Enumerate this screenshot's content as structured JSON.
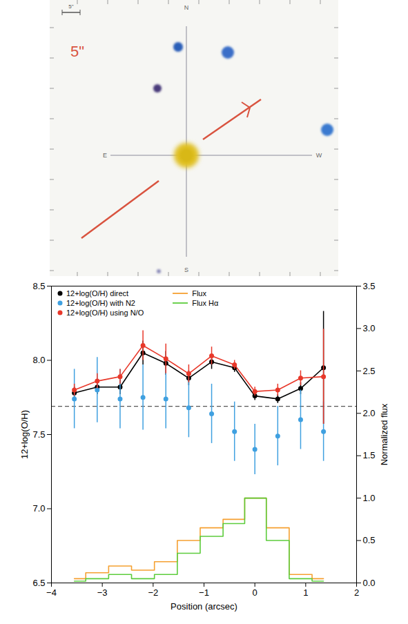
{
  "finding_chart": {
    "compass_labels": {
      "north": "N",
      "south": "S",
      "east": "E",
      "west": "W"
    },
    "scale_bar_label": "5\"",
    "scale_label": "5\"",
    "slit_color": "#d9533f",
    "scale_label_color": "#d9533f"
  },
  "chart_data": {
    "type": "scatter",
    "x_label": "Position (arcsec)",
    "y_label": "12+log(O/H)",
    "y2_label": "Normalized flux",
    "xlim": [
      -4,
      2
    ],
    "xticks": [
      -4,
      -3,
      -2,
      -1,
      0,
      1,
      2
    ],
    "ylim": [
      6.5,
      8.5
    ],
    "yticks": [
      6.5,
      {
        "value": 7,
        "label": "7.0"
      },
      7.5,
      {
        "value": 8,
        "label": "8.0"
      },
      8.5
    ],
    "y2lim": [
      0,
      3.5
    ],
    "y2ticks": [
      {
        "value": 0,
        "label": "0.0"
      },
      0.5,
      {
        "value": 1,
        "label": "1.0"
      },
      1.5,
      {
        "value": 2,
        "label": "2.0"
      },
      2.5,
      {
        "value": 3,
        "label": "3.0"
      },
      3.5
    ],
    "legend": "top",
    "x": [
      -3.55,
      -3.1,
      -2.65,
      -2.2,
      -1.75,
      -1.3,
      -0.85,
      -0.4,
      0.0,
      0.45,
      0.9,
      1.35
    ],
    "series": [
      {
        "name": "12+log(O/H) direct",
        "color": "#000000",
        "type": "line",
        "marker": "circle",
        "line_style": "solid",
        "values": [
          7.78,
          7.82,
          7.82,
          8.05,
          7.98,
          7.88,
          7.99,
          7.95,
          7.76,
          7.74,
          7.81,
          7.95
        ],
        "errors": [
          0.04,
          0.05,
          0.05,
          0.08,
          0.08,
          0.05,
          0.05,
          0.03,
          0.03,
          0.03,
          0.04,
          0.38
        ]
      },
      {
        "name": "12+log(O/H) with N2",
        "color": "#3fa0e0",
        "type": "scatter",
        "marker": "circle",
        "line_style": "none",
        "values": [
          7.74,
          7.8,
          7.74,
          7.75,
          7.74,
          7.68,
          7.64,
          7.52,
          7.4,
          7.49,
          7.6,
          7.52
        ],
        "errors": [
          0.2,
          0.22,
          0.2,
          0.22,
          0.2,
          0.2,
          0.2,
          0.2,
          0.17,
          0.2,
          0.2,
          0.2
        ]
      },
      {
        "name": "12+log(O/H) using N/O",
        "color": "#e8382a",
        "type": "line",
        "marker": "circle",
        "line_style": "solid",
        "values": [
          7.8,
          7.86,
          7.89,
          8.1,
          8.01,
          7.91,
          8.03,
          7.97,
          7.79,
          7.8,
          7.88,
          7.89
        ],
        "errors": [
          0.04,
          0.05,
          0.05,
          0.1,
          0.1,
          0.06,
          0.06,
          0.03,
          0.03,
          0.04,
          0.05,
          0.32
        ]
      },
      {
        "name": "Flux",
        "color": "#f5a030",
        "type": "step",
        "axis": "y2",
        "line_style": "solid",
        "values": [
          0.05,
          0.12,
          0.2,
          0.15,
          0.25,
          0.5,
          0.65,
          0.75,
          1.0,
          0.65,
          0.1,
          0.05
        ]
      },
      {
        "name": "Flux Hα",
        "color": "#5ccc3c",
        "type": "step",
        "axis": "y2",
        "line_style": "solid",
        "values": [
          0.02,
          0.05,
          0.1,
          0.05,
          0.1,
          0.35,
          0.55,
          0.7,
          1.0,
          0.5,
          0.05,
          0.02
        ]
      }
    ],
    "reference_line": {
      "y": 7.69,
      "color": "#555555",
      "line_style": "dashed"
    }
  }
}
